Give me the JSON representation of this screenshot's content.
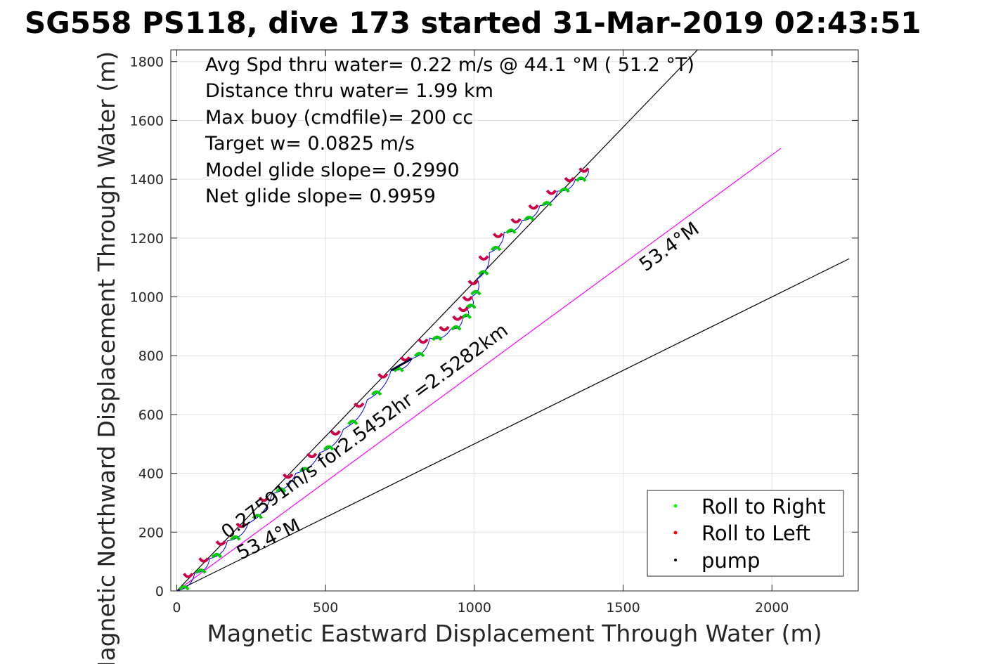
{
  "chart_data": {
    "type": "line",
    "title": "SG558 PS118, dive 173 started 31-Mar-2019 02:43:51",
    "xlabel": "Magnetic Eastward Displacement Through Water (m)",
    "ylabel": "Magnetic Northward Displacement Through Water (m)",
    "xlim": [
      -20,
      2290
    ],
    "ylim": [
      0,
      1840
    ],
    "xticks": [
      0,
      500,
      1000,
      1500,
      2000
    ],
    "yticks": [
      0,
      200,
      400,
      600,
      800,
      1000,
      1200,
      1400,
      1600,
      1800
    ],
    "grid": true,
    "info_lines": [
      "Avg Spd thru water=  0.22 m/s @  44.1 °M ( 51.2 °T)",
      "Distance thru water=  1.99 km",
      "Max buoy (cmdfile)= 200 cc",
      "Target w= 0.0825 m/s",
      "Model glide slope= 0.2990",
      "Net glide slope= 0.9959"
    ],
    "annotations": [
      {
        "text": "0.27591m/s for2.5452hr =2.5282km",
        "x": 170,
        "y": 175
      },
      {
        "text": "53.4°M",
        "x": 215,
        "y": 105
      },
      {
        "text": "53.4°M",
        "x": 1575,
        "y": 1085
      }
    ],
    "reference_lines": [
      {
        "name": "upper",
        "color": "#000000",
        "x": [
          0,
          1750
        ],
        "y": [
          0,
          1840
        ]
      },
      {
        "name": "center",
        "color": "#ff00ff",
        "x": [
          0,
          2030
        ],
        "y": [
          0,
          1505
        ]
      },
      {
        "name": "lower",
        "color": "#000000",
        "x": [
          0,
          2260
        ],
        "y": [
          0,
          1130
        ]
      }
    ],
    "series": [
      {
        "name": "track",
        "color": "#0000ff",
        "x": [
          0,
          60,
          110,
          170,
          240,
          320,
          400,
          480,
          560,
          640,
          720,
          790,
          850,
          920,
          960,
          975,
          990,
          1010,
          1050,
          1100,
          1160,
          1220,
          1280,
          1340,
          1385
        ],
        "y": [
          0,
          60,
          110,
          170,
          230,
          330,
          400,
          470,
          550,
          650,
          750,
          790,
          860,
          890,
          930,
          960,
          1000,
          1060,
          1150,
          1220,
          1260,
          1310,
          1360,
          1400,
          1430
        ]
      }
    ],
    "legend": {
      "position": "bottom-right",
      "entries": [
        {
          "label": "Roll to Right",
          "color": "#00ff00"
        },
        {
          "label": "Roll to Left",
          "color": "#ff0000"
        },
        {
          "label": "pump",
          "color": "#000000"
        }
      ]
    }
  }
}
